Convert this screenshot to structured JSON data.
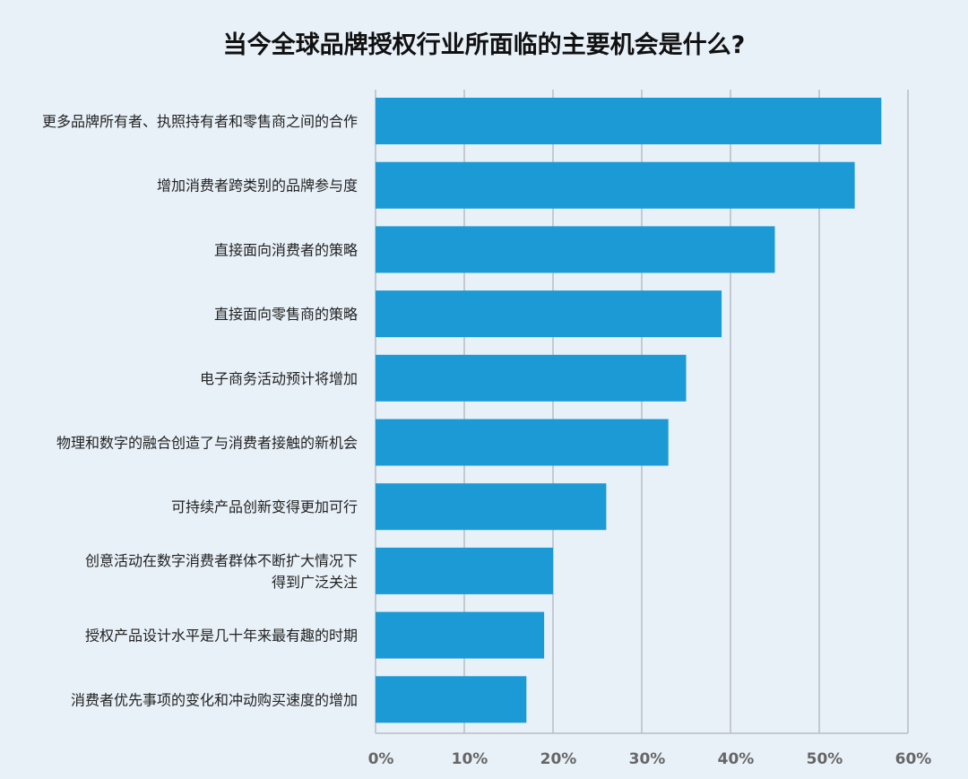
{
  "chart_data": {
    "type": "bar",
    "orientation": "horizontal",
    "title": "当今全球品牌授权行业所面临的主要机会是什么?",
    "categories": [
      [
        "更多品牌所有者、执照持有者和零售商之间的合作"
      ],
      [
        "增加消费者跨类别的品牌参与度"
      ],
      [
        "直接面向消费者的策略"
      ],
      [
        "直接面向零售商的策略"
      ],
      [
        "电子商务活动预计将增加"
      ],
      [
        "物理和数字的融合创造了与消费者接触的新机会"
      ],
      [
        "可持续产品创新变得更加可行"
      ],
      [
        "创意活动在数字消费者群体不断扩大情况下",
        "得到广泛关注"
      ],
      [
        "授权产品设计水平是几十年来最有趣的时期"
      ],
      [
        "消费者优先事项的变化和冲动购买速度的增加"
      ]
    ],
    "values": [
      57,
      54,
      45,
      39,
      35,
      33,
      26,
      20,
      19,
      17
    ],
    "xlim": [
      0,
      60
    ],
    "ticks": [
      "0%",
      "10%",
      "20%",
      "30%",
      "40%",
      "50%",
      "60%"
    ],
    "grid": true,
    "bar_color": "#1c9ad6",
    "grid_color": "#b9bec4"
  }
}
